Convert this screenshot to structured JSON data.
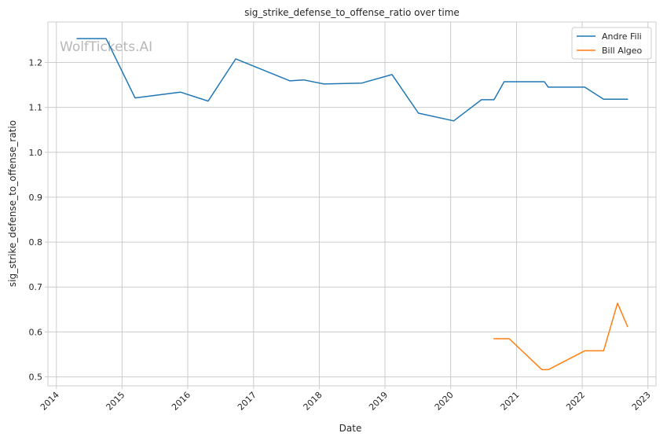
{
  "chart_data": {
    "type": "line",
    "title": "sig_strike_defense_to_offense_ratio over time",
    "xlabel": "Date",
    "ylabel": "sig_strike_defense_to_offense_ratio",
    "watermark": "WolfTickets.AI",
    "xlim": [
      "2013-11-15",
      "2023-02-15"
    ],
    "ylim": [
      0.48,
      1.29
    ],
    "x_ticks": [
      "2014",
      "2015",
      "2016",
      "2017",
      "2018",
      "2019",
      "2020",
      "2021",
      "2022",
      "2023"
    ],
    "y_ticks": [
      0.5,
      0.6,
      0.7,
      0.8,
      0.9,
      1.0,
      1.1,
      1.2
    ],
    "y_tick_labels": [
      "0.5",
      "0.6",
      "0.7",
      "0.8",
      "0.9",
      "1.0",
      "1.1",
      "1.2"
    ],
    "grid": true,
    "legend_position": "top-right",
    "series": [
      {
        "name": "Andre Fili",
        "color": "#1f77b4",
        "points": [
          {
            "x": "2014-04-26",
            "y": 1.253
          },
          {
            "x": "2014-10-04",
            "y": 1.253
          },
          {
            "x": "2015-03-14",
            "y": 1.121
          },
          {
            "x": "2015-11-21",
            "y": 1.134
          },
          {
            "x": "2016-04-23",
            "y": 1.114
          },
          {
            "x": "2016-09-24",
            "y": 1.208
          },
          {
            "x": "2017-07-22",
            "y": 1.159
          },
          {
            "x": "2017-10-07",
            "y": 1.161
          },
          {
            "x": "2018-01-27",
            "y": 1.152
          },
          {
            "x": "2018-08-25",
            "y": 1.154
          },
          {
            "x": "2019-02-09",
            "y": 1.173
          },
          {
            "x": "2019-07-06",
            "y": 1.087
          },
          {
            "x": "2020-01-18",
            "y": 1.07
          },
          {
            "x": "2020-06-20",
            "y": 1.117
          },
          {
            "x": "2020-08-29",
            "y": 1.117
          },
          {
            "x": "2020-10-24",
            "y": 1.157
          },
          {
            "x": "2021-06-05",
            "y": 1.157
          },
          {
            "x": "2021-06-26",
            "y": 1.145
          },
          {
            "x": "2022-01-15",
            "y": 1.145
          },
          {
            "x": "2022-04-30",
            "y": 1.118
          },
          {
            "x": "2022-09-10",
            "y": 1.118
          }
        ]
      },
      {
        "name": "Bill Algeo",
        "color": "#ff7f0e",
        "points": [
          {
            "x": "2020-08-29",
            "y": 0.585
          },
          {
            "x": "2020-11-21",
            "y": 0.585
          },
          {
            "x": "2021-05-22",
            "y": 0.516
          },
          {
            "x": "2021-06-26",
            "y": 0.516
          },
          {
            "x": "2022-01-15",
            "y": 0.558
          },
          {
            "x": "2022-04-30",
            "y": 0.558
          },
          {
            "x": "2022-07-16",
            "y": 0.664
          },
          {
            "x": "2022-09-10",
            "y": 0.612
          }
        ]
      }
    ]
  }
}
